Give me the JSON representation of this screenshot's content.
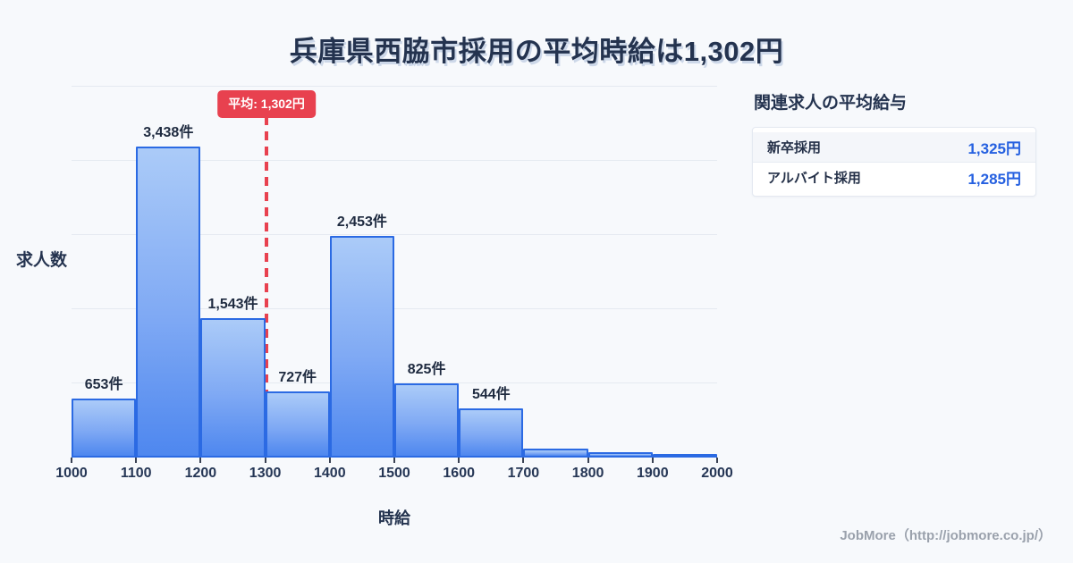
{
  "title": "兵庫県西脇市採用の平均時給は1,302円",
  "chart_data": {
    "type": "bar",
    "title": "兵庫県西脇市採用の平均時給は1,302円",
    "xlabel": "時給",
    "ylabel": "求人数",
    "bin_edges": [
      1000,
      1100,
      1200,
      1300,
      1400,
      1500,
      1600,
      1700,
      1800,
      1900,
      2000
    ],
    "x_tick_labels": [
      "1000",
      "1100",
      "1200",
      "1300",
      "1400",
      "1500",
      "1600",
      "1700",
      "1800",
      "1900",
      "2000"
    ],
    "values": [
      653,
      3438,
      1543,
      727,
      2453,
      825,
      544,
      100,
      60,
      20
    ],
    "bar_labels": [
      "653件",
      "3,438件",
      "1,543件",
      "727件",
      "2,453件",
      "825件",
      "544件",
      "",
      "",
      ""
    ],
    "average": 1302,
    "average_label": "平均: 1,302円",
    "ylim": [
      0,
      4100
    ],
    "gridline_count": 5,
    "grid": true,
    "legend": "none"
  },
  "side_panel": {
    "heading": "関連求人の平均給与",
    "rows": [
      {
        "label": "新卒採用",
        "value": "1,325円"
      },
      {
        "label": "アルバイト採用",
        "value": "1,285円"
      }
    ]
  },
  "footer": {
    "credit": "JobMore（http://jobmore.co.jp/）"
  },
  "colors": {
    "background": "#f7f9fc",
    "title_text": "#24334f",
    "bar_fill_top": "#abcbf8",
    "bar_fill_bottom": "#4e87ef",
    "bar_border": "#2b6ae3",
    "gridline": "#e5eaf1",
    "average_red": "#e8414f",
    "panel_value_blue": "#2560e0",
    "footer_gray": "#9aa1ac"
  }
}
